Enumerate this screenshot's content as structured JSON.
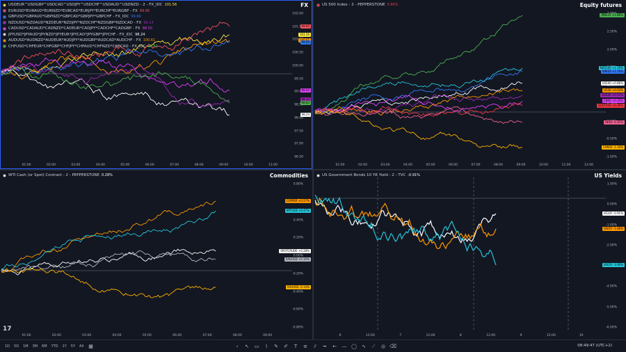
{
  "panes": [
    {
      "id": "fx",
      "label": "FX",
      "legend": [
        {
          "text": "USDEUR^USDGBP^USDCAD^USDJPY^USDCHF^USDAUD^USDNZD - 2 - FX_IDC",
          "value": "101.56",
          "color": "#ffeb3b"
        },
        {
          "text": "EURUSD*EURAUD*EURNZD*EURCAD*EURJPY*EURCHF*EURGBP - FX",
          "value": "99.95",
          "color": "#f7525f"
        },
        {
          "text": "GBPUSD*GBPAUD*GBPNZD*GBPCAD*GBPJPY*GBPCHF - FX_IDC",
          "value": "99.69",
          "color": "#3179f5"
        },
        {
          "text": "NZDUSD*NZDAUD*NZDEUR*NZDJPY*NZDCHF*NZDGBP*NZDCAD - FX",
          "value": "98.14",
          "color": "#9c27b0"
        },
        {
          "text": "CADUSD*CADAUD*CADNZD*CADEUR*CADJPY*CADCHF*CADGBP - FX",
          "value": "98.50",
          "color": "#e040fb"
        },
        {
          "text": "JPYUSD*JPYAUD*JPYNZD*JPYEUR*JPYCAD*JPYGBP*JPYCHF - FX_IDC",
          "value": "98.24",
          "color": "#ffffff"
        },
        {
          "text": "AUDUSD*AUDNZD*AUDEUR*AUDJPY*AUDGBP*AUDCAD*AUDCHF - FX",
          "value": "100.61",
          "color": "#ff9800"
        },
        {
          "text": "CHFUSD*CHFEUR*CHFGBP*CHFJPY*CHFAUD*CHFNZD*CHFCAD - FX_IDC",
          "value": "98.83",
          "color": "#4caf50"
        }
      ],
      "yticks": [
        "102.00",
        "101.50",
        "101.00",
        "100.50",
        "100.00",
        "99.50",
        "99.00",
        "98.50",
        "98.00",
        "97.50",
        "97.00",
        "96.50"
      ],
      "xticks": [
        "01:00",
        "02:00",
        "03:00",
        "04:00",
        "05:00",
        "06:00",
        "07:00",
        "08:00",
        "09:00",
        "10:00",
        "11:00"
      ],
      "badges": [
        {
          "text": "101.56",
          "color": "#ffeb3b"
        },
        {
          "text": "100.61",
          "color": "#ff9800"
        },
        {
          "text": "99.95",
          "color": "#f7525f"
        },
        {
          "text": "99.69",
          "color": "#3179f5"
        },
        {
          "text": "98.50",
          "color": "#e040fb"
        },
        {
          "text": "98.24",
          "color": "#ffffff"
        },
        {
          "text": "98.14",
          "color": "#9c27b0"
        },
        {
          "text": "98.83",
          "color": "#4caf50"
        }
      ]
    },
    {
      "id": "equity",
      "label": "Equity futures",
      "legend": [
        {
          "text": "US 500 Index - 2 - PEPPERSTONE",
          "value": "0.86%",
          "color": "#f23645"
        }
      ],
      "yticks": [
        "3.00%",
        "2.50%",
        "2.00%",
        "1.50%",
        "1.00%",
        "0.50%",
        "0.00%",
        "-0.50%",
        "-1.00%"
      ],
      "xticks": [
        "01:00",
        "02:00",
        "03:00",
        "04:00",
        "05:00",
        "06:00",
        "07:00",
        "08:00",
        "09:00",
        "10:00",
        "11:00",
        "12:00"
      ],
      "badges": [
        {
          "text": "JPN225 +2.86%",
          "color": "#4caf50"
        },
        {
          "text": "NAS100 +1.19%",
          "color": "#26c6da"
        },
        {
          "text": "SWI20 +1.10%",
          "color": "#3179f5"
        },
        {
          "text": "US500 +0.86%",
          "color": "#ffffff"
        },
        {
          "text": "US30 +0.64%",
          "color": "#ff9800"
        },
        {
          "text": "GER40 +0.52%",
          "color": "#9c27b0"
        },
        {
          "text": "CN50 +0.35%",
          "color": "#e040fb"
        },
        {
          "text": "EUSTX50 +0.26%",
          "color": "#f23645"
        },
        {
          "text": "HK50 -0.31%",
          "color": "#f06292"
        },
        {
          "text": "CHN50 -1.30%",
          "color": "#ffb300"
        }
      ]
    },
    {
      "id": "commodities",
      "label": "Commodities",
      "legend": [
        {
          "text": "WTI Cash (or Spot) Contract - 2 - PEPPERSTONE",
          "value": "0.28%",
          "color": "#ffffff"
        }
      ],
      "yticks": [
        "0.80%",
        "0.60%",
        "0.40%",
        "0.20%",
        "0.00%",
        "-0.20%",
        "-0.40%",
        "-0.60%",
        "-0.80%"
      ],
      "xticks": [
        "01:00",
        "02:00",
        "03:00",
        "04:00",
        "05:00",
        "06:00",
        "07:00",
        "08:00",
        "09:00"
      ],
      "badges": [
        {
          "text": "COPPER +0.57%",
          "color": "#ff9800"
        },
        {
          "text": "XPTUSD +0.47%",
          "color": "#26c6da"
        },
        {
          "text": "SPOTCRUDE +0.28%",
          "color": "#ffffff"
        },
        {
          "text": "XAGUSD +0.10%",
          "color": "#b2b5be"
        },
        {
          "text": "XAUUSD -0.14%",
          "color": "#ffb300"
        }
      ]
    },
    {
      "id": "yields",
      "label": "US Yields",
      "legend": [
        {
          "text": "US Government Bonds 10 YR Yield - 2 - TVC",
          "value": "-0.91%",
          "color": "#ffffff"
        }
      ],
      "yticks": [
        "1.00%",
        "0.00%",
        "-1.00%",
        "-2.00%",
        "-3.00%",
        "-4.00%",
        "-5.00%",
        "-6.00%"
      ],
      "xticks": [
        "6",
        "12:00",
        "7",
        "12:00",
        "8",
        "12:00",
        "9",
        "12:00",
        "10"
      ],
      "badges": [
        {
          "text": "US10Y -0.91%",
          "color": "#ffffff"
        },
        {
          "text": "US05Y -1.86%",
          "color": "#ff9800"
        },
        {
          "text": "US02Y -3.90%",
          "color": "#26c6da"
        }
      ]
    }
  ],
  "bottom_bar": {
    "timeframes": [
      "1D",
      "5D",
      "1M",
      "3M",
      "6M",
      "YTD",
      "1Y",
      "5Y",
      "All"
    ],
    "clock": "08:49:47 (UTC+2)"
  },
  "tv_logo": "17"
}
